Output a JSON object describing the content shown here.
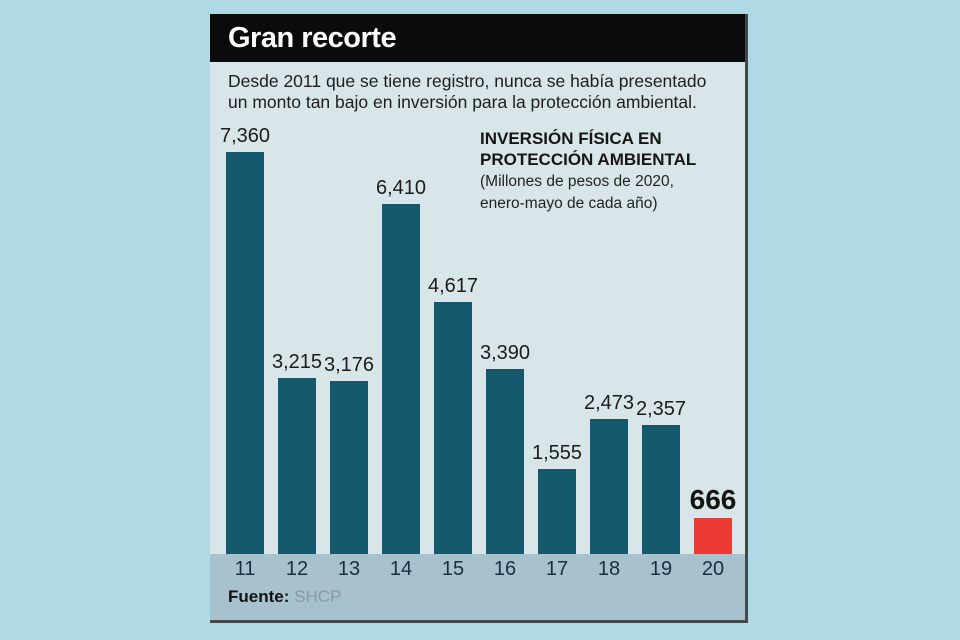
{
  "banner": {
    "title": "Gran recorte"
  },
  "intro": {
    "line1": "Desde 2011 que se tiene registro, nunca se había presentado",
    "line2": "un monto tan bajo en inversión para la protección ambiental."
  },
  "chart_data": {
    "type": "bar",
    "title_line1": "INVERSIÓN FÍSICA EN",
    "title_line2": "PROTECCIÓN AMBIENTAL",
    "subtitle_line1": "(Millones de pesos de 2020,",
    "subtitle_line2": "enero-mayo de cada año)",
    "categories": [
      "11",
      "12",
      "13",
      "14",
      "15",
      "16",
      "17",
      "18",
      "19",
      "20"
    ],
    "values": [
      7360,
      3215,
      3176,
      6410,
      4617,
      3390,
      1555,
      2473,
      2357,
      666
    ],
    "value_labels": [
      "7,360",
      "3,215",
      "3,176",
      "6,410",
      "4,617",
      "3,390",
      "1,555",
      "2,473",
      "2,357",
      "666"
    ],
    "highlight_index": 9,
    "bar_color": "#14586d",
    "highlight_color": "#ee3a34",
    "xlabel": "",
    "ylabel": "",
    "ylim": [
      0,
      7360
    ],
    "grid": false,
    "legend": "none"
  },
  "source": {
    "label": "Fuente:",
    "value": "SHCP"
  },
  "colors": {
    "page_background": "#aed9e5",
    "panel_background": "#d8e5e9",
    "banner_background": "#0b0b0e",
    "strip_background": "#a7c2cc"
  }
}
